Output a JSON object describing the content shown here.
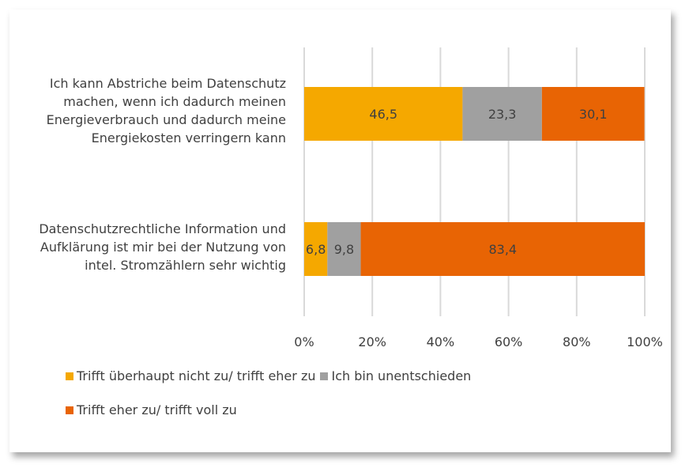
{
  "chart_data": {
    "type": "bar",
    "orientation": "horizontal",
    "stacked": "percent",
    "categories": [
      "Ich kann Abstriche beim Datenschutz machen, wenn ich dadurch meinen Energieverbrauch und dadurch meine Energiekosten verringern kann",
      "Datenschutzrechtliche Information und Aufklärung ist mir bei der Nutzung von intel. Stromzählern sehr wichtig"
    ],
    "category_lines": [
      [
        "Ich kann Abstriche beim Datenschutz",
        "machen, wenn ich dadurch meinen",
        "Energieverbrauch und dadurch meine",
        "Energiekosten verringern kann"
      ],
      [
        "Datenschutzrechtliche Information und",
        "Aufklärung ist mir bei der Nutzung von",
        "intel. Stromzählern sehr wichtig"
      ]
    ],
    "series": [
      {
        "name": "Trifft überhaupt nicht zu/ trifft eher zu",
        "color": "#F5A800",
        "values": [
          46.5,
          6.8
        ],
        "labels": [
          "46,5",
          "6,8"
        ]
      },
      {
        "name": "Ich bin unentschieden",
        "color": "#A0A0A0",
        "values": [
          23.3,
          9.8
        ],
        "labels": [
          "23,3",
          "9,8"
        ]
      },
      {
        "name": "Trifft eher zu/ trifft voll zu",
        "color": "#E86404",
        "values": [
          30.1,
          83.4
        ],
        "labels": [
          "30,1",
          "83,4"
        ]
      }
    ],
    "xlim": [
      0,
      100
    ],
    "xticks": [
      "0%",
      "20%",
      "40%",
      "60%",
      "80%",
      "100%"
    ],
    "grid": true,
    "legend": "bottom"
  }
}
